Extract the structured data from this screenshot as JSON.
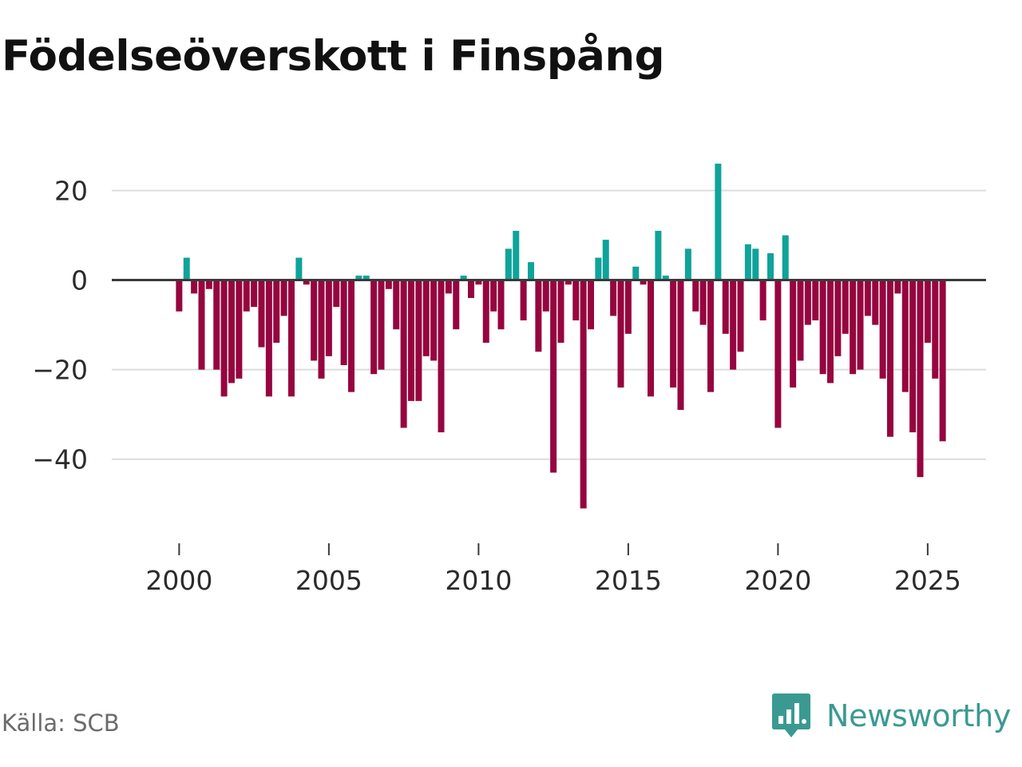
{
  "chart_data": {
    "type": "bar",
    "title": "Födelseöverskott i Finspång",
    "xlabel": "",
    "ylabel": "",
    "ylim": [
      -57,
      34
    ],
    "xlim": [
      1997.75,
      2026.95
    ],
    "yticks": [
      20,
      0,
      -20,
      -40
    ],
    "ytick_labels": [
      "20",
      "0",
      "−20",
      "−40"
    ],
    "xticks": [
      2000,
      2005,
      2010,
      2015,
      2020,
      2025
    ],
    "xtick_labels": [
      "2000",
      "2005",
      "2010",
      "2015",
      "2020",
      "2025"
    ],
    "grid": true,
    "positive_color": "#0fa39a",
    "negative_color": "#96053f",
    "series": [
      {
        "name": "Födelseöverskott",
        "start": 2000.0,
        "step": 0.25,
        "values": [
          -7,
          5,
          -3,
          -20,
          -2,
          -20,
          -26,
          -23,
          -22,
          -7,
          -6,
          -15,
          -26,
          -14,
          -8,
          -26,
          5,
          -1,
          -18,
          -22,
          -17,
          -6,
          -19,
          -25,
          1,
          1,
          -21,
          -20,
          -2,
          -11,
          -33,
          -27,
          -27,
          -17,
          -18,
          -34,
          -3,
          -11,
          1,
          -4,
          -1,
          -14,
          -7,
          -11,
          7,
          11,
          -9,
          4,
          -16,
          -7,
          -43,
          -14,
          -1,
          -9,
          -51,
          -11,
          5,
          9,
          -8,
          -24,
          -12,
          3,
          -1,
          -26,
          11,
          1,
          -24,
          -29,
          7,
          -7,
          -10,
          -25,
          26,
          -12,
          -20,
          -16,
          8,
          7,
          -9,
          6,
          -33,
          10,
          -24,
          -18,
          -10,
          -9,
          -21,
          -23,
          -17,
          -12,
          -21,
          -20,
          -8,
          -10,
          -22,
          -35,
          -3,
          -25,
          -34,
          -44,
          -14,
          -22,
          -36
        ]
      }
    ]
  },
  "footer": {
    "source": "Källa: SCB",
    "brand": "Newsworthy",
    "brand_color": "#3a9a92",
    "brand_icon": "newsworthy-logo-icon"
  }
}
